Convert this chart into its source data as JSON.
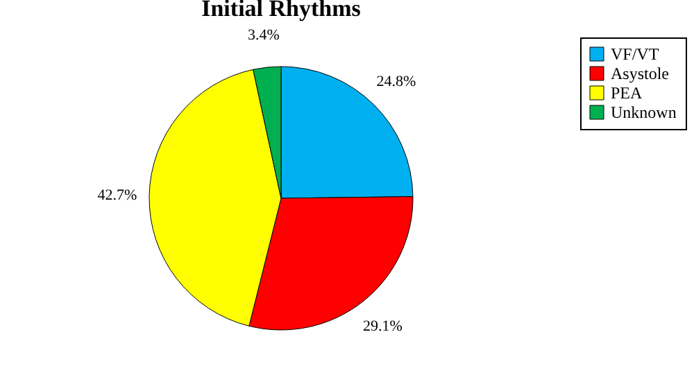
{
  "chart_data": {
    "type": "pie",
    "title": "Initial Rhythms",
    "categories": [
      "VF/VT",
      "Asystole",
      "PEA",
      "Unknown"
    ],
    "values": [
      24.8,
      29.1,
      42.7,
      3.4
    ],
    "colors": [
      "#00b0f0",
      "#ff0000",
      "#ffff00",
      "#00b050"
    ],
    "value_labels": [
      "24.8%",
      "29.1%",
      "42.7%",
      "3.4%"
    ],
    "legend": "right"
  }
}
